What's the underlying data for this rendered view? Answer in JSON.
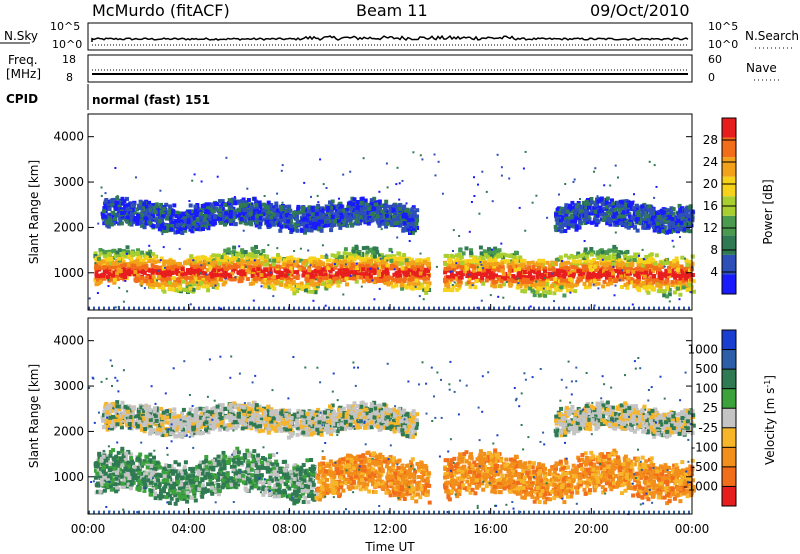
{
  "header": {
    "station": "McMurdo (fitACF)",
    "beam": "Beam 11",
    "date": "09/Oct/2010"
  },
  "panels": {
    "nsky": {
      "left_label": "N.Sky",
      "left_ticks": [
        "10^5",
        "10^0"
      ],
      "right_label": "N.Search",
      "right_ticks": [
        "10^5",
        "10^0"
      ]
    },
    "freq": {
      "left_label_1": "Freq.",
      "left_label_2": "[MHz]",
      "left_ticks": [
        "18",
        "8"
      ],
      "right_label": "Nave",
      "right_ticks": [
        "60",
        "0"
      ]
    },
    "cpid": {
      "label": "CPID",
      "text": "normal (fast) 151"
    }
  },
  "colors": {
    "power_scale": [
      "#1a1aff",
      "#2e4fb8",
      "#2f7a52",
      "#4a9a50",
      "#a8cf2f",
      "#f7d21a",
      "#f2a21a",
      "#f26d1a",
      "#e81e1e"
    ],
    "velocity_scale": [
      "#1a3fd0",
      "#2c5fa8",
      "#2f7a52",
      "#3ca33c",
      "#c4c4c4",
      "#f7b52a",
      "#f28e1a",
      "#f26d1a",
      "#e81e1e"
    ]
  },
  "chart_data": [
    {
      "type": "heatmap",
      "title": "Power",
      "xlabel": "Time UT",
      "ylabel": "Slant Range [km]",
      "x_ticks": [
        "00:00",
        "04:00",
        "08:00",
        "12:00",
        "16:00",
        "20:00",
        "00:00"
      ],
      "y_ticks": [
        "1000",
        "2000",
        "3000",
        "4000"
      ],
      "ylim": [
        180,
        4500
      ],
      "colorbar": {
        "label": "Power [dB]",
        "ticks": [
          "4",
          "8",
          "12",
          "16",
          "20",
          "24",
          "28"
        ],
        "range": [
          0,
          32
        ]
      },
      "regions": [
        {
          "t_start": 0.2,
          "t_end": 13.5,
          "range_low": 700,
          "range_high": 1500,
          "value": "12-30"
        },
        {
          "t_start": 14.1,
          "t_end": 24,
          "range_low": 650,
          "range_high": 1500,
          "value": "12-30"
        },
        {
          "t_start": 0.5,
          "t_end": 13,
          "range_low": 2000,
          "range_high": 2600,
          "value": "4-12"
        },
        {
          "t_start": 18.5,
          "t_end": 24,
          "range_low": 2000,
          "range_high": 2600,
          "value": "4-12"
        }
      ]
    },
    {
      "type": "heatmap",
      "title": "Velocity",
      "xlabel": "Time UT",
      "ylabel": "Slant Range [km]",
      "x_ticks": [
        "00:00",
        "04:00",
        "08:00",
        "12:00",
        "16:00",
        "20:00",
        "00:00"
      ],
      "y_ticks": [
        "1000",
        "2000",
        "3000",
        "4000"
      ],
      "ylim": [
        180,
        4500
      ],
      "colorbar": {
        "label": "Velocity [m s^-1]",
        "ticks": [
          "1000",
          "500",
          "100",
          "25",
          "-25",
          "-100",
          "-500",
          "-1000"
        ]
      },
      "regions": [
        {
          "t_start": 0.2,
          "t_end": 9,
          "range_low": 600,
          "range_high": 1500,
          "value": "25 to 500"
        },
        {
          "t_start": 9,
          "t_end": 13.5,
          "range_low": 600,
          "range_high": 1500,
          "value": "-25 to -500"
        },
        {
          "t_start": 14.1,
          "t_end": 24,
          "range_low": 600,
          "range_high": 1500,
          "value": "-25 to -500"
        },
        {
          "t_start": 0.5,
          "t_end": 13,
          "range_low": 2000,
          "range_high": 2600,
          "value": "-25 to 25"
        },
        {
          "t_start": 18.5,
          "t_end": 24,
          "range_low": 2000,
          "range_high": 2600,
          "value": "-25 to 25"
        }
      ]
    }
  ]
}
